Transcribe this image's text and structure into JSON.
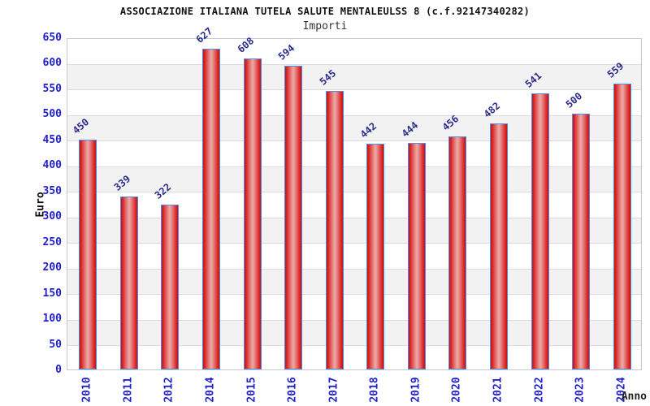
{
  "chart_data": {
    "type": "bar",
    "title": "ASSOCIAZIONE ITALIANA TUTELA SALUTE MENTALEULSS 8 (c.f.92147340282)",
    "subtitle": "Importi",
    "xlabel": "Anno",
    "ylabel": "Euro",
    "categories": [
      "2010",
      "2011",
      "2012",
      "2014",
      "2015",
      "2016",
      "2017",
      "2018",
      "2019",
      "2020",
      "2021",
      "2022",
      "2023",
      "2024"
    ],
    "values": [
      450,
      339,
      322,
      627,
      608,
      594,
      545,
      442,
      444,
      456,
      482,
      541,
      500,
      559
    ],
    "ylim": [
      0,
      650
    ],
    "ytick_step": 50,
    "grid": true,
    "legend_position": "none",
    "bar_value_labels": true,
    "background_bands": "alternating white and light gray"
  },
  "colors": {
    "axis_tick_label": "#1f1fd0",
    "bar_value_label": "#2b2b8f",
    "bar_fill_edge": "#c41212",
    "bar_fill_center": "#ecaca9",
    "bar_border": "#4a90e8",
    "band_gray": "#f2f2f2",
    "gridline": "#dcdcdc",
    "plot_frame": "#c8c8c8",
    "title_text": "#111111"
  }
}
